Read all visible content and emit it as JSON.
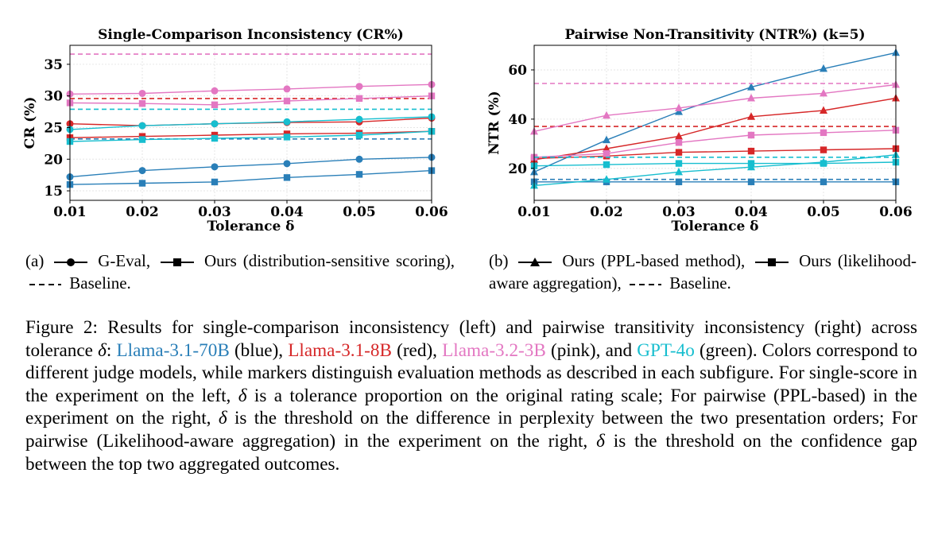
{
  "colors": {
    "llama70b": "#2a7fb8",
    "llama8b": "#d62728",
    "llama3b": "#e377c2",
    "gpt4o": "#17becf"
  },
  "chart_data": [
    {
      "type": "line",
      "title": "Single-Comparison Inconsistency (CR%)",
      "xlabel": "Tolerance δ",
      "ylabel": "CR (%)",
      "x": [
        0.01,
        0.02,
        0.03,
        0.04,
        0.05,
        0.06
      ],
      "x_ticks": [
        "0.01",
        "0.02",
        "0.03",
        "0.04",
        "0.05",
        "0.06"
      ],
      "xlim": [
        0.01,
        0.06
      ],
      "ylim": [
        13.5,
        38
      ],
      "y_ticks": [
        15,
        20,
        25,
        30,
        35
      ],
      "grid": true,
      "series": [
        {
          "name": "Llama-3.1-70B G-Eval",
          "color": "#2a7fb8",
          "marker": "circle",
          "style": "solid",
          "values": [
            17.2,
            18.2,
            18.8,
            19.3,
            20.0,
            20.3
          ]
        },
        {
          "name": "Llama-3.1-70B Ours",
          "color": "#2a7fb8",
          "marker": "square",
          "style": "solid",
          "values": [
            16.0,
            16.2,
            16.4,
            17.1,
            17.6,
            18.2
          ]
        },
        {
          "name": "Llama-3.1-70B Baseline",
          "color": "#2a7fb8",
          "marker": "none",
          "style": "dashed",
          "values": [
            23.2,
            23.2,
            23.2,
            23.2,
            23.2,
            23.2
          ]
        },
        {
          "name": "Llama-3.1-8B G-Eval",
          "color": "#d62728",
          "marker": "circle",
          "style": "solid",
          "values": [
            25.6,
            25.3,
            25.6,
            25.8,
            25.9,
            26.5
          ]
        },
        {
          "name": "Llama-3.1-8B Ours",
          "color": "#d62728",
          "marker": "square",
          "style": "solid",
          "values": [
            23.4,
            23.6,
            23.8,
            24.0,
            24.1,
            24.4
          ]
        },
        {
          "name": "Llama-3.1-8B Baseline",
          "color": "#d62728",
          "marker": "none",
          "style": "dashed",
          "values": [
            29.6,
            29.6,
            29.6,
            29.6,
            29.6,
            29.6
          ]
        },
        {
          "name": "Llama-3.2-3B G-Eval",
          "color": "#e377c2",
          "marker": "circle",
          "style": "solid",
          "values": [
            30.3,
            30.4,
            30.8,
            31.1,
            31.5,
            31.8
          ]
        },
        {
          "name": "Llama-3.2-3B Ours",
          "color": "#e377c2",
          "marker": "square",
          "style": "solid",
          "values": [
            28.9,
            28.8,
            28.6,
            29.2,
            29.6,
            30.0
          ]
        },
        {
          "name": "Llama-3.2-3B Baseline",
          "color": "#e377c2",
          "marker": "none",
          "style": "dashed",
          "values": [
            36.6,
            36.6,
            36.6,
            36.6,
            36.6,
            36.6
          ]
        },
        {
          "name": "GPT-4o G-Eval",
          "color": "#17becf",
          "marker": "circle",
          "style": "solid",
          "values": [
            24.7,
            25.3,
            25.6,
            25.9,
            26.3,
            26.7
          ]
        },
        {
          "name": "GPT-4o Ours",
          "color": "#17becf",
          "marker": "square",
          "style": "solid",
          "values": [
            22.8,
            23.1,
            23.3,
            23.5,
            23.8,
            24.4
          ]
        },
        {
          "name": "GPT-4o Baseline",
          "color": "#17becf",
          "marker": "none",
          "style": "dashed",
          "values": [
            27.9,
            27.9,
            27.9,
            27.9,
            27.9,
            27.9
          ]
        }
      ]
    },
    {
      "type": "line",
      "title": "Pairwise Non-Transitivity (NTR%) (k=5)",
      "xlabel": "Tolerance δ",
      "ylabel": "NTR (%)",
      "x": [
        0.01,
        0.02,
        0.03,
        0.04,
        0.05,
        0.06
      ],
      "x_ticks": [
        "0.01",
        "0.02",
        "0.03",
        "0.04",
        "0.05",
        "0.06"
      ],
      "xlim": [
        0.01,
        0.06
      ],
      "ylim": [
        7,
        70
      ],
      "y_ticks": [
        20,
        40,
        60
      ],
      "grid": true,
      "series": [
        {
          "name": "Llama-3.1-70B PPL-based",
          "color": "#2a7fb8",
          "marker": "triangle",
          "style": "solid",
          "values": [
            18.5,
            31.5,
            43,
            53,
            60.5,
            67
          ]
        },
        {
          "name": "Llama-3.1-70B Likelihood-aware",
          "color": "#2a7fb8",
          "marker": "square",
          "style": "solid",
          "values": [
            14.5,
            14.5,
            14.5,
            14.5,
            14.5,
            14.5
          ]
        },
        {
          "name": "Llama-3.1-70B Baseline",
          "color": "#2a7fb8",
          "marker": "none",
          "style": "dashed",
          "values": [
            15.5,
            15.5,
            15.5,
            15.5,
            15.5,
            15.5
          ]
        },
        {
          "name": "Llama-3.1-8B PPL-based",
          "color": "#d62728",
          "marker": "triangle",
          "style": "solid",
          "values": [
            23.5,
            28,
            33,
            41,
            43.5,
            48.5
          ]
        },
        {
          "name": "Llama-3.1-8B Likelihood-aware",
          "color": "#d62728",
          "marker": "square",
          "style": "solid",
          "values": [
            24,
            25,
            26.5,
            27,
            27.5,
            28
          ]
        },
        {
          "name": "Llama-3.1-8B Baseline",
          "color": "#d62728",
          "marker": "none",
          "style": "dashed",
          "values": [
            37,
            37,
            37,
            37,
            37,
            37
          ]
        },
        {
          "name": "Llama-3.2-3B PPL-based",
          "color": "#e377c2",
          "marker": "triangle",
          "style": "solid",
          "values": [
            35,
            41.5,
            44.5,
            48.5,
            50.5,
            54
          ]
        },
        {
          "name": "Llama-3.2-3B Likelihood-aware",
          "color": "#e377c2",
          "marker": "square",
          "style": "solid",
          "values": [
            24.5,
            26,
            30.5,
            33.5,
            34.5,
            35.5
          ]
        },
        {
          "name": "Llama-3.2-3B Baseline",
          "color": "#e377c2",
          "marker": "none",
          "style": "dashed",
          "values": [
            54.5,
            54.5,
            54.5,
            54.5,
            54.5,
            54.5
          ]
        },
        {
          "name": "GPT-4o PPL-based",
          "color": "#17becf",
          "marker": "triangle",
          "style": "solid",
          "values": [
            13,
            15.5,
            18.5,
            20.5,
            22.5,
            25.5
          ]
        },
        {
          "name": "GPT-4o Likelihood-aware",
          "color": "#17becf",
          "marker": "square",
          "style": "solid",
          "values": [
            21,
            21.5,
            22,
            22,
            22,
            22.5
          ]
        },
        {
          "name": "GPT-4o Baseline",
          "color": "#17becf",
          "marker": "none",
          "style": "dashed",
          "values": [
            24.5,
            24.5,
            24.5,
            24.5,
            24.5,
            24.5
          ]
        }
      ]
    }
  ],
  "subcaption_a": {
    "prefix": "(a)",
    "circle_label": "G-Eval,",
    "square_label": "Ours (distribution-sensitive scoring),",
    "dash_label": "Baseline."
  },
  "subcaption_b": {
    "prefix": "(b)",
    "triangle_label": "Ours (PPL-based method),",
    "square_label": "Ours (likelihood-aware aggregation),",
    "dash_label": "Baseline."
  },
  "caption": {
    "lead": "Figure 2: Results for single-comparison inconsistency (left) and pairwise transitivity inconsistency (right) across tolerance ",
    "delta": "δ",
    "colon": ": ",
    "model_blue": "Llama-3.1-70B",
    "blue_word": " (blue), ",
    "model_red": "Llama-3.1-8B",
    "red_word": " (red), ",
    "model_pink": "Llama-3.2-3B",
    "pink_word": " (pink), and ",
    "model_green": "GPT-4o",
    "green_word": " (green). Colors correspond to different judge models, while markers distinguish evaluation methods as described in each subfigure. For single-score in the experiment on the left, ",
    "part2": " is a tolerance proportion on the original rating scale; For pairwise (PPL-based) in the experiment on the right, ",
    "part3": " is the threshold on the difference in perplexity between the two presentation orders; For pairwise (Likelihood-aware aggregation) in the experiment on the right, ",
    "part4": " is the threshold on the confidence gap between the top two aggregated outcomes."
  }
}
